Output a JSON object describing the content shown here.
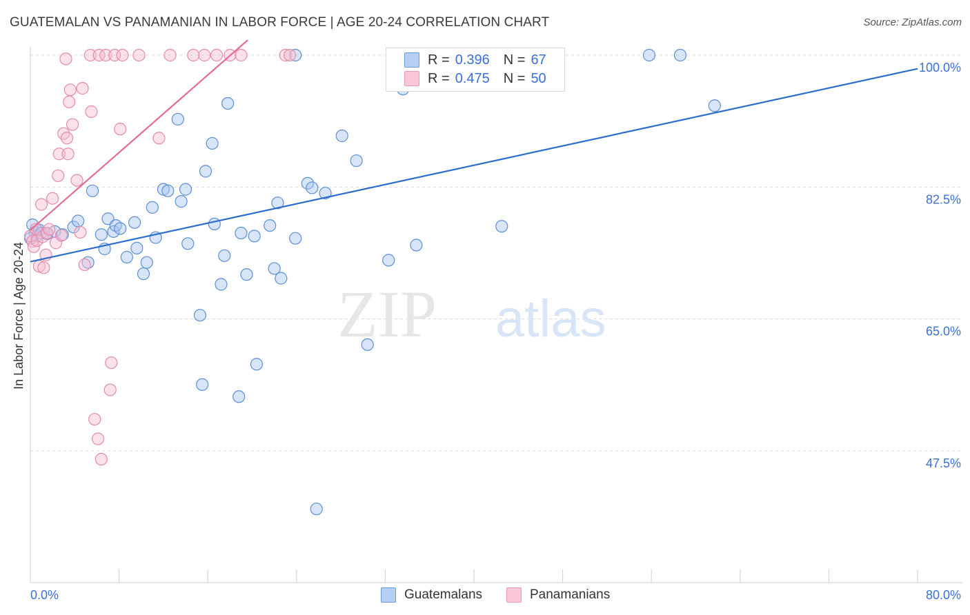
{
  "title": "GUATEMALAN VS PANAMANIAN IN LABOR FORCE | AGE 20-24 CORRELATION CHART",
  "source": "Source: ZipAtlas.com",
  "watermark": {
    "zip": "ZIP",
    "atlas": "atlas"
  },
  "legend": {
    "series1": {
      "r_label": "R =",
      "r_value": "0.396",
      "n_label": "N =",
      "n_value": "67"
    },
    "series2": {
      "r_label": "R =",
      "r_value": "0.475",
      "n_label": "N =",
      "n_value": "50"
    }
  },
  "colors": {
    "guatemalan_fill": "#a9c6ef",
    "guatemalan_stroke": "#5b8ed8",
    "guatemalan_line": "#2b6ccc",
    "panamanian_fill": "#f6bcd0",
    "panamanian_stroke": "#e68aab",
    "panamanian_line": "#e56b98",
    "axis_label": "#3a6fd8"
  },
  "chart_data": {
    "type": "scatter",
    "title": "GUATEMALAN VS PANAMANIAN IN LABOR FORCE | AGE 20-24 CORRELATION CHART",
    "xlabel": "",
    "ylabel": "In Labor Force | Age 20-24",
    "xlim": [
      0,
      80
    ],
    "ylim": [
      32,
      102
    ],
    "x_tick_labels": [
      "0.0%",
      "80.0%"
    ],
    "y_ticks": [
      47.5,
      65.0,
      82.5,
      100.0
    ],
    "y_tick_labels": [
      "47.5%",
      "65.0%",
      "82.5%",
      "100.0%"
    ],
    "grid": true,
    "legend_position": "bottom-center",
    "series": [
      {
        "name": "Guatemalans",
        "r": 0.396,
        "n": 67,
        "trend": {
          "x": [
            0,
            80
          ],
          "y": [
            72.6,
            98.2
          ]
        },
        "points": [
          [
            0.2,
            77.5
          ],
          [
            0.4,
            76.5
          ],
          [
            0.6,
            76.0
          ],
          [
            0.8,
            76.8
          ],
          [
            1.0,
            76.4
          ],
          [
            1.5,
            76.3
          ],
          [
            2.2,
            76.6
          ],
          [
            2.9,
            76.2
          ],
          [
            3.9,
            77.2
          ],
          [
            4.3,
            78.0
          ],
          [
            5.2,
            72.5
          ],
          [
            5.6,
            82.0
          ],
          [
            6.4,
            76.2
          ],
          [
            6.7,
            74.3
          ],
          [
            7.0,
            78.3
          ],
          [
            7.5,
            76.6
          ],
          [
            7.7,
            77.4
          ],
          [
            8.1,
            77.0
          ],
          [
            8.7,
            73.2
          ],
          [
            9.4,
            77.8
          ],
          [
            9.6,
            74.4
          ],
          [
            10.2,
            71.0
          ],
          [
            10.5,
            72.5
          ],
          [
            11.0,
            79.8
          ],
          [
            11.3,
            75.8
          ],
          [
            12.0,
            82.2
          ],
          [
            12.4,
            82.0
          ],
          [
            13.3,
            91.5
          ],
          [
            13.6,
            80.6
          ],
          [
            14.0,
            82.2
          ],
          [
            14.2,
            75.0
          ],
          [
            15.3,
            65.5
          ],
          [
            15.5,
            56.3
          ],
          [
            15.8,
            84.6
          ],
          [
            16.4,
            88.3
          ],
          [
            16.6,
            77.6
          ],
          [
            17.2,
            69.6
          ],
          [
            17.5,
            73.4
          ],
          [
            17.8,
            93.6
          ],
          [
            18.8,
            54.7
          ],
          [
            19.0,
            76.4
          ],
          [
            19.5,
            70.9
          ],
          [
            20.2,
            76.0
          ],
          [
            20.4,
            59.0
          ],
          [
            21.6,
            77.4
          ],
          [
            22.0,
            71.7
          ],
          [
            22.3,
            80.4
          ],
          [
            22.6,
            70.4
          ],
          [
            23.9,
            100.0
          ],
          [
            23.9,
            75.7
          ],
          [
            25.0,
            83.0
          ],
          [
            25.4,
            82.4
          ],
          [
            25.8,
            39.8
          ],
          [
            26.6,
            81.7
          ],
          [
            28.1,
            89.3
          ],
          [
            29.4,
            86.0
          ],
          [
            30.4,
            61.6
          ],
          [
            32.3,
            72.8
          ],
          [
            33.6,
            95.5
          ],
          [
            34.8,
            74.8
          ],
          [
            36.0,
            100.0
          ],
          [
            42.5,
            77.3
          ],
          [
            43.5,
            100.0
          ],
          [
            55.8,
            100.0
          ],
          [
            58.6,
            100.0
          ],
          [
            61.7,
            93.3
          ],
          [
            0.0,
            75.7
          ]
        ]
      },
      {
        "name": "Panamanians",
        "r": 0.475,
        "n": 50,
        "trend": {
          "x": [
            0,
            19.6
          ],
          "y": [
            76.8,
            102.0
          ]
        },
        "points": [
          [
            0.0,
            76.0
          ],
          [
            0.2,
            75.3
          ],
          [
            0.3,
            74.6
          ],
          [
            0.5,
            76.9
          ],
          [
            0.6,
            75.4
          ],
          [
            0.8,
            72.0
          ],
          [
            1.0,
            80.2
          ],
          [
            1.1,
            75.9
          ],
          [
            1.2,
            71.8
          ],
          [
            1.4,
            73.5
          ],
          [
            1.5,
            76.4
          ],
          [
            1.7,
            76.9
          ],
          [
            2.0,
            81.0
          ],
          [
            2.3,
            75.1
          ],
          [
            2.5,
            84.0
          ],
          [
            2.6,
            86.9
          ],
          [
            2.8,
            76.1
          ],
          [
            3.0,
            89.6
          ],
          [
            3.2,
            99.5
          ],
          [
            3.3,
            89.0
          ],
          [
            3.4,
            86.9
          ],
          [
            3.5,
            93.8
          ],
          [
            3.6,
            95.4
          ],
          [
            3.8,
            90.8
          ],
          [
            4.2,
            83.4
          ],
          [
            4.5,
            76.5
          ],
          [
            4.7,
            95.6
          ],
          [
            4.9,
            72.2
          ],
          [
            5.4,
            100.0
          ],
          [
            5.5,
            92.5
          ],
          [
            5.8,
            51.7
          ],
          [
            6.1,
            49.1
          ],
          [
            6.2,
            100.0
          ],
          [
            6.4,
            46.4
          ],
          [
            6.8,
            100.0
          ],
          [
            7.2,
            55.6
          ],
          [
            7.3,
            59.2
          ],
          [
            7.6,
            100.0
          ],
          [
            8.1,
            90.2
          ],
          [
            8.3,
            100.0
          ],
          [
            9.8,
            100.0
          ],
          [
            11.6,
            89.0
          ],
          [
            12.6,
            100.0
          ],
          [
            14.7,
            100.0
          ],
          [
            15.7,
            100.0
          ],
          [
            16.8,
            100.0
          ],
          [
            18.0,
            100.0
          ],
          [
            19.0,
            100.0
          ],
          [
            23.0,
            100.0
          ],
          [
            23.4,
            100.0
          ]
        ]
      }
    ]
  },
  "bottom_legend": {
    "item1": "Guatemalans",
    "item2": "Panamanians"
  }
}
